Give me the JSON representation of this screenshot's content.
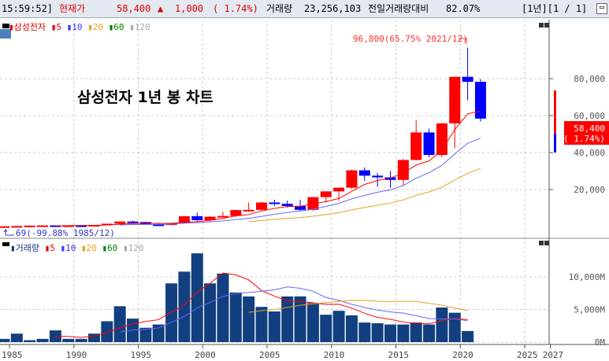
{
  "header": {
    "time": "15:59:52]",
    "price_label": "현재가",
    "price": "58,400",
    "up_icon": "▲",
    "change": "1,000",
    "change_pct": "( 1.74%)",
    "volume_label": "거래량",
    "volume": "23,256,103",
    "prev_ratio_label": "전일거래량대비",
    "prev_ratio": "82.07%",
    "period": "[1년][1 / 1]"
  },
  "colors": {
    "up": "#ff0000",
    "down": "#0000ff",
    "ma5": "#ff0000",
    "ma10": "#6666ff",
    "ma20": "#e8a020",
    "ma60": "#008000",
    "ma120": "#aaaaaa"
  },
  "price_legend": {
    "name": "삼성전자",
    "ma": [
      "5",
      "10",
      "20",
      "60",
      "120"
    ]
  },
  "volume_legend": {
    "name": "거래량",
    "ma": [
      "5",
      "10",
      "20",
      "60",
      "120"
    ]
  },
  "title": "삼성전자 1년 봉 차트",
  "max_annotation": "96,800(65.75% 2021/12)",
  "min_annotation": "69(-99.88% 1985/12)",
  "current_tag": {
    "price": "58,400",
    "pct": "( 1.74%)"
  },
  "chart_data": [
    {
      "type": "candlestick",
      "ylabel": "",
      "y_ticks": [
        "20,000",
        "40,000",
        "60,000",
        "80,000"
      ],
      "ylim": [
        0,
        110000
      ],
      "x_ticks": [
        "1985",
        "1990",
        "1995",
        "2000",
        "2005",
        "2010",
        "2015",
        "2020",
        "2025",
        "2027"
      ],
      "candles": [
        {
          "year": 1985,
          "o": 69,
          "h": 130,
          "l": 69,
          "c": 120
        },
        {
          "year": 1986,
          "o": 120,
          "h": 260,
          "l": 110,
          "c": 250
        },
        {
          "year": 1987,
          "o": 250,
          "h": 520,
          "l": 240,
          "c": 500
        },
        {
          "year": 1988,
          "o": 500,
          "h": 650,
          "l": 450,
          "c": 600
        },
        {
          "year": 1989,
          "o": 600,
          "h": 700,
          "l": 500,
          "c": 550
        },
        {
          "year": 1990,
          "o": 550,
          "h": 650,
          "l": 450,
          "c": 600
        },
        {
          "year": 1991,
          "o": 600,
          "h": 700,
          "l": 500,
          "c": 550
        },
        {
          "year": 1992,
          "o": 550,
          "h": 850,
          "l": 500,
          "c": 800
        },
        {
          "year": 1993,
          "o": 800,
          "h": 1600,
          "l": 750,
          "c": 1500
        },
        {
          "year": 1994,
          "o": 1500,
          "h": 2800,
          "l": 1400,
          "c": 2700
        },
        {
          "year": 1995,
          "o": 2700,
          "h": 3200,
          "l": 2200,
          "c": 2400
        },
        {
          "year": 1996,
          "o": 2400,
          "h": 2600,
          "l": 1000,
          "c": 1100
        },
        {
          "year": 1997,
          "o": 1100,
          "h": 1700,
          "l": 700,
          "c": 800
        },
        {
          "year": 1998,
          "o": 800,
          "h": 2000,
          "l": 650,
          "c": 1900
        },
        {
          "year": 1999,
          "o": 1900,
          "h": 5800,
          "l": 1700,
          "c": 5600
        },
        {
          "year": 2000,
          "o": 5600,
          "h": 7500,
          "l": 2700,
          "c": 3400
        },
        {
          "year": 2001,
          "o": 3400,
          "h": 5500,
          "l": 2700,
          "c": 5300
        },
        {
          "year": 2002,
          "o": 5300,
          "h": 8000,
          "l": 5100,
          "c": 5700
        },
        {
          "year": 2003,
          "o": 5700,
          "h": 9200,
          "l": 5200,
          "c": 8900
        },
        {
          "year": 2004,
          "o": 8900,
          "h": 13000,
          "l": 8000,
          "c": 9000
        },
        {
          "year": 2005,
          "o": 9000,
          "h": 13300,
          "l": 8300,
          "c": 13000
        },
        {
          "year": 2006,
          "o": 13000,
          "h": 14500,
          "l": 11000,
          "c": 12300
        },
        {
          "year": 2007,
          "o": 12300,
          "h": 14000,
          "l": 10200,
          "c": 11100
        },
        {
          "year": 2008,
          "o": 11100,
          "h": 14500,
          "l": 8200,
          "c": 9000
        },
        {
          "year": 2009,
          "o": 9000,
          "h": 16000,
          "l": 8500,
          "c": 15900
        },
        {
          "year": 2010,
          "o": 15900,
          "h": 19000,
          "l": 13000,
          "c": 19000
        },
        {
          "year": 2011,
          "o": 19000,
          "h": 21000,
          "l": 14000,
          "c": 21000
        },
        {
          "year": 2012,
          "o": 21000,
          "h": 30800,
          "l": 20400,
          "c": 30400
        },
        {
          "year": 2013,
          "o": 30400,
          "h": 32000,
          "l": 24700,
          "c": 27500
        },
        {
          "year": 2014,
          "o": 27500,
          "h": 29000,
          "l": 21500,
          "c": 26600
        },
        {
          "year": 2015,
          "o": 26600,
          "h": 30000,
          "l": 21000,
          "c": 25200
        },
        {
          "year": 2016,
          "o": 25200,
          "h": 36500,
          "l": 21900,
          "c": 36000
        },
        {
          "year": 2017,
          "o": 36000,
          "h": 57500,
          "l": 35800,
          "c": 50900
        },
        {
          "year": 2018,
          "o": 50900,
          "h": 53000,
          "l": 37500,
          "c": 38700
        },
        {
          "year": 2019,
          "o": 38700,
          "h": 56000,
          "l": 37500,
          "c": 55800
        },
        {
          "year": 2020,
          "o": 55800,
          "h": 81000,
          "l": 42300,
          "c": 81000
        },
        {
          "year": 2021,
          "o": 81000,
          "h": 96800,
          "l": 68300,
          "c": 78300
        },
        {
          "year": 2022,
          "o": 78300,
          "h": 79800,
          "l": 56800,
          "c": 58400
        }
      ]
    },
    {
      "type": "bar",
      "ylabel": "",
      "unit": "M",
      "y_ticks": [
        "0M",
        "5,000M",
        "10,000M"
      ],
      "ylim": [
        0,
        14500
      ],
      "volumes": [
        500,
        1300,
        300,
        500,
        1800,
        500,
        500,
        1300,
        3200,
        5500,
        3600,
        2200,
        2700,
        9000,
        10800,
        13600,
        9000,
        10500,
        7600,
        7000,
        5400,
        4700,
        7000,
        7000,
        6000,
        4200,
        4800,
        4100,
        3000,
        2900,
        2700,
        2700,
        3000,
        2700,
        5300,
        4500,
        1700,
        0
      ]
    }
  ]
}
